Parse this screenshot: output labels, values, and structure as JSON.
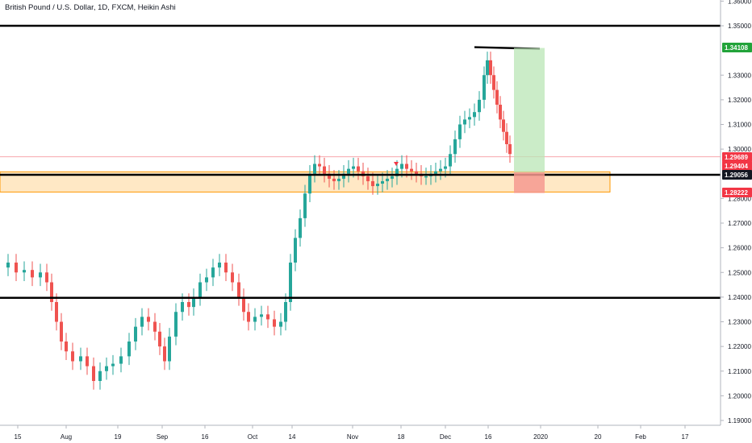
{
  "chart_data": {
    "type": "candlestick",
    "title": "British Pound / U.S. Dollar, 1D, FXCM, Heikin Ashi",
    "y_ticks": [
      "1.36000",
      "1.35000",
      "1.33000",
      "1.32000",
      "1.31000",
      "1.30000",
      "1.28000",
      "1.27000",
      "1.26000",
      "1.25000",
      "1.24000",
      "1.23000",
      "1.22000",
      "1.21000",
      "1.20000",
      "1.19000"
    ],
    "x_ticks": [
      "15",
      "Aug",
      "19",
      "Sep",
      "16",
      "Oct",
      "14",
      "Nov",
      "18",
      "Dec",
      "16",
      "2020",
      "20",
      "Feb",
      "17"
    ],
    "ylim": [
      1.188,
      1.363
    ],
    "horizontal_levels": [
      1.35,
      1.2896,
      1.2397
    ],
    "resistance_segment": 1.341,
    "zone": [
      1.2826,
      1.2908
    ],
    "price_tags": [
      {
        "value": "1.34108",
        "color": "#22a33a"
      },
      {
        "value": "1.29689",
        "color": "#f23645"
      },
      {
        "value": "1.29404",
        "color": "#f23645"
      },
      {
        "value": "1.29056",
        "color": "#131722"
      },
      {
        "value": "1.28222",
        "color": "#f23645"
      }
    ],
    "position": {
      "entry": 1.2906,
      "target": 1.341,
      "stop": 1.2822
    },
    "colors": {
      "up": "#26a69a",
      "down": "#ef5350"
    }
  }
}
